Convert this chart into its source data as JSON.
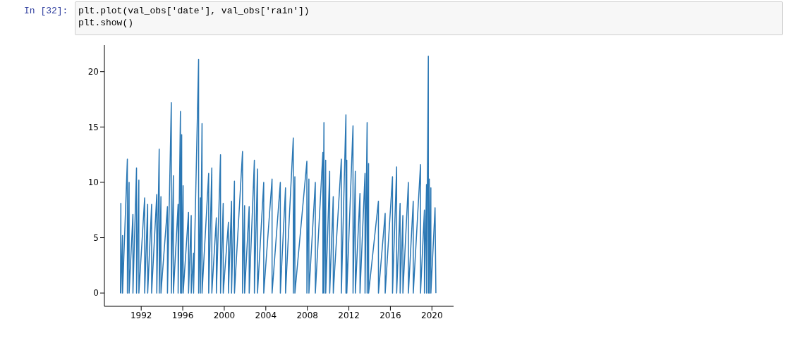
{
  "chart_data": {
    "type": "line",
    "annotations": [
      "In [32]:",
      "plt.plot(val_obs['date'], val_obs['rain'])\nplt.show()"
    ],
    "xlim": [
      "1988-06-15",
      "2022-02-01"
    ],
    "xticks": [
      "1992",
      "1996",
      "2000",
      "2004",
      "2008",
      "2012",
      "2016",
      "2020"
    ],
    "ylim": [
      -1.2,
      22.4
    ],
    "yticks": [
      0,
      5,
      10,
      15,
      20
    ],
    "grid": false,
    "legend": false,
    "marker": "none",
    "line_style": "solid",
    "series": [
      {
        "color": "#2a77b4",
        "x": [
          "1990-01-01",
          "1990-01-15",
          "1990-01-16",
          "1990-03-15",
          "1990-03-16",
          "1990-09-01",
          "1990-09-02",
          "1990-11-01",
          "1990-11-02",
          "1991-03-15",
          "1991-03-16",
          "1991-07-20",
          "1991-07-21",
          "1991-10-10",
          "1991-10-11",
          "1992-05-01",
          "1992-05-02",
          "1992-08-15",
          "1992-08-16",
          "1993-01-01",
          "1993-01-02",
          "1993-07-01",
          "1993-07-02",
          "1993-09-25",
          "1993-09-26",
          "1993-11-25",
          "1993-11-26",
          "1994-07-12",
          "1994-07-13",
          "1994-11-25",
          "1994-11-26",
          "1995-02-06",
          "1995-02-07",
          "1995-07-22",
          "1995-07-23",
          "1995-10-12",
          "1995-10-13",
          "1995-11-25",
          "1995-11-26",
          "1996-01-15",
          "1996-01-16",
          "1996-07-22",
          "1996-07-23",
          "1996-10-25",
          "1996-10-26",
          "1997-01-15",
          "1997-01-16",
          "1997-07-12",
          "1997-07-13",
          "1997-09-12",
          "1997-09-13",
          "1997-11-10",
          "1997-11-11",
          "1998-07-01",
          "1998-07-02",
          "1998-10-20",
          "1998-10-21",
          "1999-03-28",
          "1999-03-29",
          "1999-08-22",
          "1999-08-23",
          "1999-11-25",
          "1999-11-26",
          "2000-05-26",
          "2000-05-27",
          "2000-09-12",
          "2000-09-13",
          "2000-12-24",
          "2000-12-25",
          "2001-10-05",
          "2001-10-06",
          "2001-12-16",
          "2001-12-17",
          "2002-05-26",
          "2002-05-27",
          "2002-11-25",
          "2002-11-26",
          "2003-03-15",
          "2003-03-16",
          "2003-10-20",
          "2003-10-21",
          "2004-08-08",
          "2004-08-09",
          "2005-05-26",
          "2005-05-27",
          "2005-11-25",
          "2005-11-26",
          "2006-08-25",
          "2006-08-26",
          "2006-10-20",
          "2006-10-21",
          "2007-12-16",
          "2007-12-17",
          "2008-02-25",
          "2008-02-26",
          "2008-10-08",
          "2008-10-09",
          "2009-07-01",
          "2009-07-02",
          "2009-08-08",
          "2009-08-09",
          "2009-10-08",
          "2009-10-09",
          "2010-02-25",
          "2010-02-26",
          "2010-07-01",
          "2010-07-02",
          "2011-04-12",
          "2011-04-13",
          "2011-09-20",
          "2011-09-21",
          "2011-10-20",
          "2011-10-21",
          "2012-05-26",
          "2012-05-27",
          "2012-08-15",
          "2012-08-16",
          "2013-01-26",
          "2013-01-27",
          "2013-07-22",
          "2013-07-23",
          "2013-10-05",
          "2013-10-06",
          "2013-11-25",
          "2013-11-26",
          "2014-11-06",
          "2014-11-07",
          "2015-07-01",
          "2015-07-02",
          "2016-03-15",
          "2016-03-16",
          "2016-08-08",
          "2016-08-09",
          "2016-12-08",
          "2016-12-09",
          "2017-03-15",
          "2017-03-16",
          "2017-09-25",
          "2017-09-26",
          "2018-03-15",
          "2018-03-16",
          "2018-11-25",
          "2018-11-26",
          "2019-04-12",
          "2019-04-13",
          "2019-06-25",
          "2019-06-26",
          "2019-08-28",
          "2019-08-29",
          "2019-10-01",
          "2019-10-02",
          "2019-11-25",
          "2019-11-26",
          "2020-04-20",
          "2020-05-20"
        ],
        "values": [
          0,
          8.1,
          0,
          5.2,
          0,
          12.1,
          0,
          10.0,
          0,
          7.1,
          0,
          11.3,
          0,
          10.2,
          0,
          8.6,
          0,
          8.0,
          0,
          8.0,
          0,
          8.9,
          0,
          13.0,
          0,
          8.7,
          0,
          7.8,
          0,
          17.2,
          0,
          10.6,
          0,
          8.0,
          0,
          16.4,
          0,
          14.3,
          0,
          9.7,
          0,
          7.3,
          0,
          7.0,
          0,
          3.6,
          0,
          21.1,
          0,
          8.6,
          0,
          15.3,
          0,
          10.8,
          0,
          11.3,
          0,
          6.8,
          0,
          12.5,
          0,
          8.1,
          0,
          6.4,
          0,
          8.3,
          0,
          10.1,
          0,
          12.8,
          0,
          7.9,
          0,
          7.8,
          0,
          12.0,
          0,
          11.2,
          0,
          10.0,
          0,
          10.3,
          0,
          10.0,
          0,
          9.5,
          0,
          14.0,
          0,
          10.5,
          0,
          11.9,
          0,
          10.3,
          0,
          10.0,
          0,
          12.7,
          0,
          15.4,
          0,
          12.0,
          0,
          11.0,
          0,
          8.7,
          0,
          12.1,
          0,
          16.1,
          0,
          12.0,
          0,
          15.1,
          0,
          11.0,
          0,
          9.0,
          0,
          10.8,
          0,
          15.4,
          0,
          11.7,
          0,
          8.3,
          0,
          7.2,
          0,
          10.5,
          0,
          11.4,
          0,
          8.1,
          0,
          7.0,
          0,
          10.0,
          0,
          8.3,
          0,
          11.6,
          0,
          7.5,
          0,
          9.8,
          0,
          21.4,
          0,
          10.3,
          0,
          9.5,
          0,
          7.7,
          0
        ]
      }
    ]
  }
}
